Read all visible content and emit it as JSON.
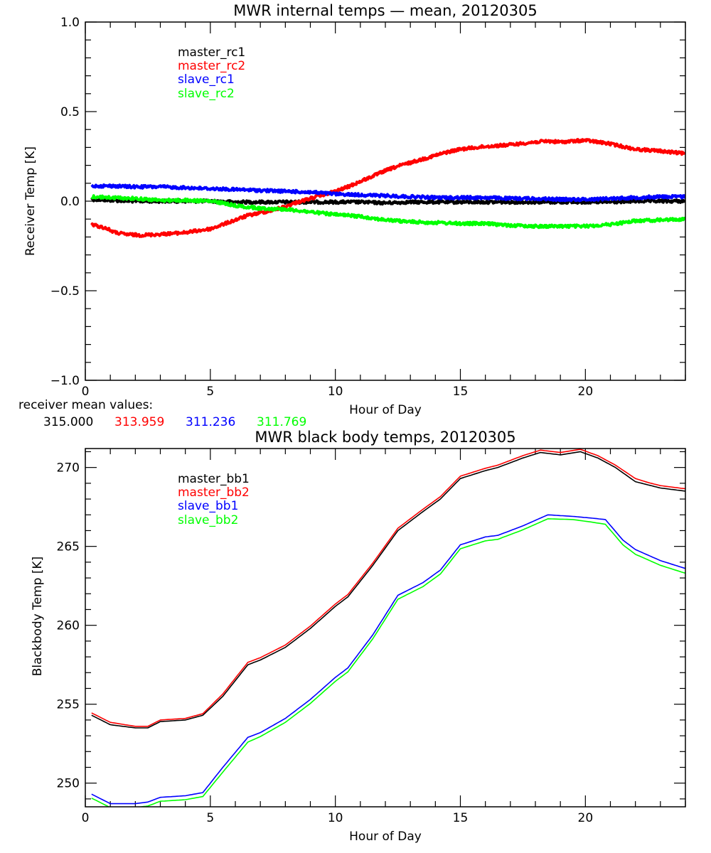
{
  "chart_data": [
    {
      "type": "line",
      "title": "MWR internal temps — mean, 20120305",
      "xlabel": "Hour of Day",
      "ylabel": "Receiver Temp [K]",
      "xlim": [
        0,
        24
      ],
      "ylim": [
        -1.0,
        1.0
      ],
      "xticks": [
        0,
        5,
        10,
        15,
        20
      ],
      "xtick_labels": [
        "0",
        "5",
        "10",
        "15",
        "20"
      ],
      "yticks": [
        -1.0,
        -0.5,
        0.0,
        0.5,
        1.0
      ],
      "ytick_labels": [
        "−1.0",
        "−0.5",
        "0.0",
        "0.5",
        "1.0"
      ],
      "grid": false,
      "legend_position": "top-left-inside",
      "series": [
        {
          "name": "master_rc1",
          "color": "#000000",
          "x": [
            0.25,
            1,
            2,
            3,
            4,
            5,
            6,
            7,
            8,
            9,
            10,
            11,
            12,
            13,
            14,
            15,
            16,
            17,
            18,
            19,
            20,
            21,
            22,
            23,
            24
          ],
          "y": [
            0.01,
            0.005,
            0.0,
            0.0,
            0.0,
            0.0,
            -0.005,
            -0.005,
            -0.005,
            -0.005,
            -0.005,
            -0.005,
            -0.01,
            -0.005,
            -0.005,
            -0.005,
            -0.005,
            -0.005,
            -0.005,
            -0.005,
            -0.005,
            -0.005,
            0.0,
            0.0,
            0.0
          ]
        },
        {
          "name": "master_rc2",
          "color": "#ff0000",
          "x": [
            0.25,
            0.8,
            1.2,
            1.6,
            2.2,
            3,
            4,
            5,
            5.5,
            6,
            6.5,
            7,
            7.5,
            8,
            8.5,
            9,
            9.5,
            10,
            10.5,
            11,
            11.5,
            12,
            12.5,
            13,
            13.5,
            14,
            14.5,
            15,
            16,
            17,
            18,
            18.5,
            19,
            19.5,
            20,
            20.5,
            21,
            21.5,
            22,
            23,
            24
          ],
          "y": [
            -0.13,
            -0.15,
            -0.175,
            -0.185,
            -0.19,
            -0.185,
            -0.175,
            -0.155,
            -0.13,
            -0.105,
            -0.08,
            -0.065,
            -0.05,
            -0.03,
            -0.005,
            0.015,
            0.035,
            0.055,
            0.08,
            0.11,
            0.14,
            0.17,
            0.195,
            0.215,
            0.235,
            0.255,
            0.275,
            0.29,
            0.305,
            0.315,
            0.33,
            0.335,
            0.33,
            0.335,
            0.34,
            0.33,
            0.32,
            0.305,
            0.29,
            0.28,
            0.265
          ]
        },
        {
          "name": "slave_rc1",
          "color": "#0000ff",
          "x": [
            0.25,
            1,
            2,
            3,
            4,
            5,
            6,
            7,
            8,
            9,
            10,
            11,
            12,
            13,
            14,
            15,
            16,
            17,
            18,
            19,
            20,
            21,
            22,
            23,
            24
          ],
          "y": [
            0.085,
            0.085,
            0.08,
            0.08,
            0.075,
            0.07,
            0.065,
            0.06,
            0.055,
            0.05,
            0.04,
            0.035,
            0.03,
            0.025,
            0.02,
            0.02,
            0.02,
            0.015,
            0.015,
            0.01,
            0.01,
            0.015,
            0.02,
            0.025,
            0.025
          ]
        },
        {
          "name": "slave_rc2",
          "color": "#00ff00",
          "x": [
            0.25,
            1,
            2,
            3,
            4,
            5,
            5.5,
            6,
            7,
            8,
            9,
            10,
            11,
            12,
            13,
            14,
            15,
            16,
            17,
            18,
            19,
            20,
            21,
            22,
            23,
            24
          ],
          "y": [
            0.025,
            0.02,
            0.015,
            0.005,
            0.005,
            0.0,
            -0.01,
            -0.025,
            -0.04,
            -0.045,
            -0.06,
            -0.075,
            -0.085,
            -0.105,
            -0.115,
            -0.12,
            -0.125,
            -0.125,
            -0.135,
            -0.14,
            -0.14,
            -0.14,
            -0.13,
            -0.11,
            -0.105,
            -0.1
          ]
        }
      ],
      "annotation": {
        "label": "receiver mean values:",
        "values": [
          {
            "text": "315.000",
            "color": "#000000"
          },
          {
            "text": "313.959",
            "color": "#ff0000"
          },
          {
            "text": "311.236",
            "color": "#0000ff"
          },
          {
            "text": "311.769",
            "color": "#00ff00"
          }
        ]
      }
    },
    {
      "type": "line",
      "title": "MWR black body temps, 20120305",
      "xlabel": "Hour of Day",
      "ylabel": "Blackbody Temp [K]",
      "xlim": [
        0,
        24
      ],
      "ylim": [
        248.5,
        271.2
      ],
      "xticks": [
        0,
        5,
        10,
        15,
        20
      ],
      "xtick_labels": [
        "0",
        "5",
        "10",
        "15",
        "20"
      ],
      "yticks": [
        250,
        255,
        260,
        265,
        270
      ],
      "ytick_labels": [
        "250",
        "255",
        "260",
        "265",
        "270"
      ],
      "grid": false,
      "legend_position": "top-left-inside",
      "series": [
        {
          "name": "master_bb1",
          "color": "#000000",
          "x": [
            0.25,
            1,
            2,
            2.5,
            3,
            4,
            4.7,
            5.5,
            6.5,
            7,
            8,
            9,
            10,
            10.5,
            11.5,
            12.5,
            13.5,
            14.2,
            15,
            16,
            16.5,
            17.5,
            18.2,
            19,
            19.8,
            20.5,
            21.2,
            22,
            22.5,
            23,
            24
          ],
          "y": [
            254.3,
            253.7,
            253.5,
            253.5,
            253.9,
            254.0,
            254.3,
            255.5,
            257.5,
            257.8,
            258.6,
            259.8,
            261.2,
            261.8,
            263.8,
            266.0,
            267.2,
            268.0,
            269.3,
            269.8,
            270.0,
            270.6,
            270.95,
            270.8,
            271.0,
            270.6,
            270.0,
            269.1,
            268.9,
            268.7,
            268.5
          ]
        },
        {
          "name": "master_bb2",
          "color": "#ff0000",
          "x": [
            0.25,
            1,
            2,
            2.5,
            3,
            4,
            4.7,
            5.5,
            6.5,
            7,
            8,
            9,
            10,
            10.5,
            11.5,
            12.5,
            13.5,
            14.2,
            15,
            16,
            16.5,
            17.5,
            18.2,
            19,
            19.8,
            20.5,
            21.2,
            22,
            22.5,
            23,
            24
          ],
          "y": [
            254.45,
            253.85,
            253.6,
            253.6,
            254.0,
            254.1,
            254.4,
            255.65,
            257.65,
            257.95,
            258.75,
            259.95,
            261.35,
            261.95,
            263.95,
            266.15,
            267.35,
            268.15,
            269.45,
            269.95,
            270.15,
            270.75,
            271.1,
            270.95,
            271.15,
            270.75,
            270.15,
            269.3,
            269.05,
            268.85,
            268.65
          ]
        },
        {
          "name": "slave_bb1",
          "color": "#0000ff",
          "x": [
            0.25,
            1,
            2,
            2.5,
            3,
            4,
            4.7,
            5.5,
            6.5,
            7,
            8,
            9,
            10,
            10.5,
            11.5,
            12.5,
            13.5,
            14.2,
            15,
            16,
            16.5,
            17.5,
            18.5,
            19.5,
            20.2,
            20.8,
            21.5,
            22,
            23,
            24
          ],
          "y": [
            249.3,
            248.7,
            248.7,
            248.8,
            249.1,
            249.2,
            249.4,
            251.0,
            252.9,
            253.2,
            254.1,
            255.3,
            256.7,
            257.3,
            259.4,
            261.9,
            262.7,
            263.5,
            265.1,
            265.6,
            265.7,
            266.3,
            267.0,
            266.9,
            266.8,
            266.7,
            265.4,
            264.8,
            264.1,
            263.6
          ]
        },
        {
          "name": "slave_bb2",
          "color": "#00ff00",
          "x": [
            0.25,
            1,
            2,
            2.5,
            3,
            4,
            4.7,
            5.5,
            6.5,
            7,
            8,
            9,
            10,
            10.5,
            11.5,
            12.5,
            13.5,
            14.2,
            15,
            16,
            16.5,
            17.5,
            18.5,
            19.5,
            20.2,
            20.8,
            21.5,
            22,
            23,
            24
          ],
          "y": [
            249.05,
            248.45,
            248.45,
            248.55,
            248.85,
            248.95,
            249.15,
            250.7,
            252.6,
            252.95,
            253.85,
            255.05,
            256.45,
            257.05,
            259.15,
            261.65,
            262.45,
            263.25,
            264.85,
            265.35,
            265.45,
            266.05,
            266.75,
            266.7,
            266.55,
            266.4,
            265.1,
            264.5,
            263.8,
            263.3
          ]
        }
      ]
    }
  ]
}
